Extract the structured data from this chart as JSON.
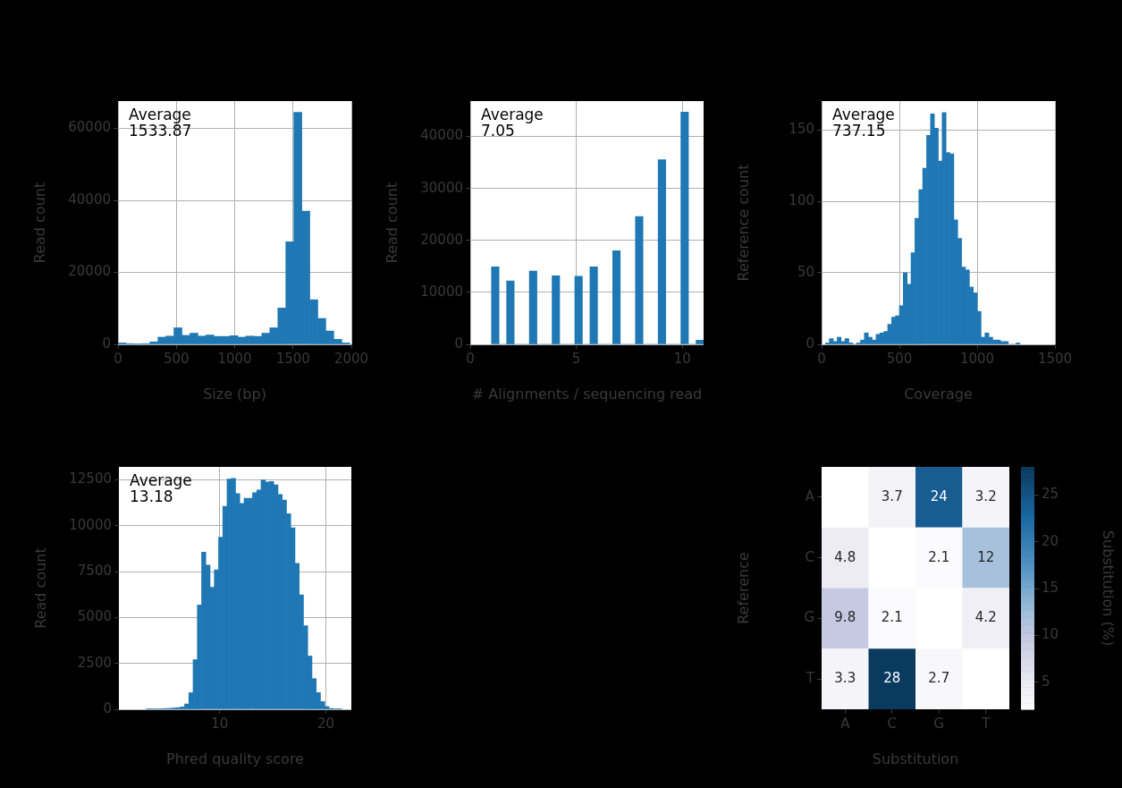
{
  "chart_data": [
    {
      "type": "histogram",
      "xlabel": "Size (bp)",
      "ylabel": "Read count",
      "color": "#1f77b4",
      "grid": true,
      "xlim": [
        0,
        2000
      ],
      "xticks": [
        0,
        500,
        1000,
        1500,
        2000
      ],
      "ylim": [
        0,
        67600
      ],
      "yticks": [
        0,
        20000,
        40000,
        60000
      ],
      "annotations": [
        "Average\n1533.87"
      ],
      "bins": [
        0,
        68.5,
        137,
        205.5,
        274,
        342.5,
        411,
        479.5,
        548,
        616.5,
        685,
        753.5,
        822,
        890.5,
        959,
        1027.5,
        1096,
        1164.5,
        1233,
        1301.5,
        1370,
        1438.5,
        1507,
        1575.5,
        1644,
        1712.5,
        1781,
        1849.5,
        1918,
        1986.5
      ],
      "values": [
        400,
        200,
        100,
        200,
        700,
        2000,
        2300,
        4600,
        2500,
        3100,
        2300,
        2600,
        2200,
        2200,
        2400,
        2000,
        2300,
        2200,
        3100,
        4600,
        10100,
        28500,
        64500,
        37000,
        12400,
        7200,
        3700,
        1400,
        400
      ]
    },
    {
      "type": "histogram",
      "xlabel": "# Alignments / sequencing read",
      "ylabel": "Read count",
      "color": "#1f77b4",
      "grid": true,
      "xlim": [
        0,
        11
      ],
      "xticks": [
        0,
        5,
        10
      ],
      "ylim": [
        0,
        46800
      ],
      "yticks": [
        0,
        10000,
        20000,
        30000,
        40000
      ],
      "annotations": [
        "Average\n7.05"
      ],
      "bins": [
        1,
        1.357,
        1.714,
        2.071,
        2.429,
        2.786,
        3.143,
        3.5,
        3.857,
        4.214,
        4.571,
        4.929,
        5.286,
        5.643,
        6,
        6.357,
        6.714,
        7.071,
        7.429,
        7.786,
        8.143,
        8.5,
        8.857,
        9.214,
        9.571,
        9.929,
        10.286,
        10.643,
        11
      ],
      "values": [
        14900,
        0,
        12200,
        0,
        0,
        14100,
        0,
        0,
        13200,
        0,
        0,
        13100,
        0,
        14900,
        0,
        0,
        18000,
        0,
        0,
        24600,
        0,
        0,
        35500,
        0,
        0,
        44700,
        0,
        800
      ]
    },
    {
      "type": "histogram",
      "xlabel": "Coverage",
      "ylabel": "Reference count",
      "color": "#1f77b4",
      "grid": true,
      "xlim": [
        0,
        1500
      ],
      "xticks": [
        0,
        500,
        1000,
        1500
      ],
      "ylim": [
        0,
        170
      ],
      "yticks": [
        0,
        50,
        100,
        150
      ],
      "annotations": [
        "Average\n737.15"
      ],
      "bins": [
        25,
        50,
        75,
        100,
        125,
        150,
        175,
        200,
        225,
        250,
        275,
        300,
        325,
        350,
        375,
        400,
        425,
        450,
        475,
        500,
        525,
        550,
        575,
        600,
        625,
        650,
        675,
        700,
        725,
        750,
        775,
        800,
        825,
        850,
        875,
        900,
        925,
        950,
        975,
        1000,
        1025,
        1050,
        1075,
        1100,
        1125,
        1150,
        1175,
        1200,
        1225,
        1250,
        1275
      ],
      "values": [
        1,
        4,
        2,
        5,
        2,
        4,
        1,
        0,
        1,
        3,
        8,
        5,
        3,
        7,
        8,
        9,
        14,
        19,
        20,
        27,
        50,
        42,
        64,
        88,
        108,
        123,
        146,
        161,
        151,
        128,
        162,
        134,
        133,
        87,
        74,
        54,
        52,
        40,
        36,
        23,
        5,
        8,
        5,
        3,
        3,
        2,
        2,
        0,
        0,
        1
      ]
    },
    {
      "type": "histogram",
      "xlabel": "Phred quality score",
      "ylabel": "Read count",
      "color": "#1f77b4",
      "grid": true,
      "xlim": [
        0.5,
        22.4
      ],
      "xticks": [
        10,
        20
      ],
      "ylim": [
        0,
        13200
      ],
      "yticks": [
        0,
        2500,
        5000,
        7500,
        10000,
        12500
      ],
      "annotations": [
        "Average\n13.18"
      ],
      "bins": [
        3.09,
        3.49,
        3.89,
        4.29,
        4.69,
        5.09,
        5.49,
        5.89,
        6.29,
        6.69,
        7.09,
        7.49,
        7.89,
        8.29,
        8.69,
        9.09,
        9.49,
        9.89,
        10.29,
        10.69,
        11.09,
        11.49,
        11.89,
        12.29,
        12.69,
        13.09,
        13.49,
        13.89,
        14.29,
        14.69,
        15.09,
        15.49,
        15.89,
        16.29,
        16.69,
        17.09,
        17.49,
        17.89,
        18.29,
        18.69,
        19.09,
        19.49,
        19.89,
        20.29,
        20.69,
        21.09,
        21.49
      ],
      "values": [
        10,
        20,
        20,
        30,
        40,
        50,
        70,
        90,
        130,
        290,
        900,
        2700,
        5680,
        8560,
        7850,
        6650,
        7590,
        9370,
        11050,
        12540,
        12570,
        11750,
        11210,
        11490,
        11490,
        11800,
        11940,
        12490,
        12380,
        12410,
        12220,
        11700,
        11400,
        10650,
        9890,
        7950,
        6230,
        4550,
        2900,
        1670,
        910,
        420,
        150,
        50,
        20,
        10
      ]
    },
    {
      "type": "heatmap",
      "xlabel": "Substitution",
      "ylabel": "Reference",
      "clabel": "Substitution (%)",
      "categories": [
        "A",
        "C",
        "G",
        "T"
      ],
      "y_categories": [
        "A",
        "C",
        "G",
        "T"
      ],
      "cells": [
        [
          null,
          3.7,
          24,
          3.2
        ],
        [
          4.8,
          null,
          2.1,
          12
        ],
        [
          9.8,
          2.1,
          null,
          4.2
        ],
        [
          3.3,
          28,
          2.7,
          null
        ]
      ],
      "clim": [
        2.1,
        28
      ],
      "cticks": [
        5,
        10,
        15,
        20,
        25
      ],
      "data_labels": true
    }
  ]
}
